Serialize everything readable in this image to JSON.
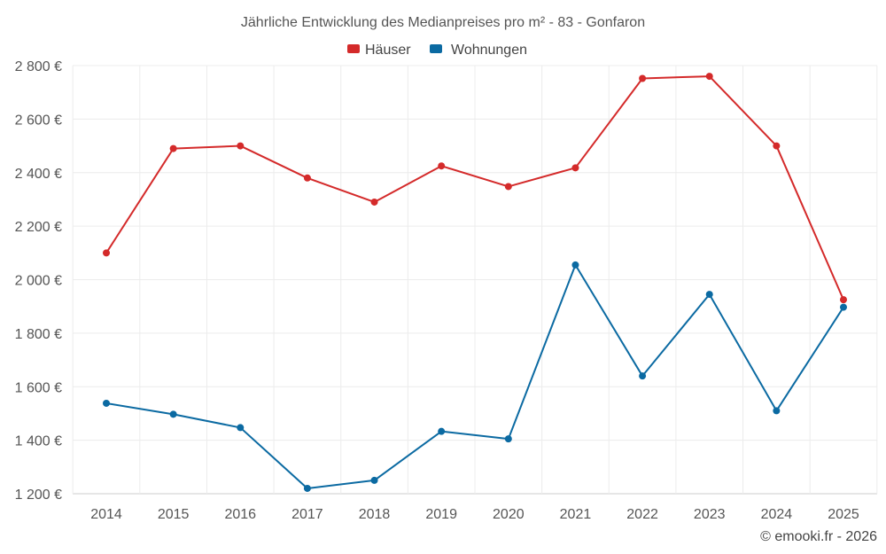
{
  "chart_data": {
    "type": "line",
    "title": "Jährliche Entwicklung des Medianpreises pro m² - 83 - Gonfaron",
    "categories": [
      "2014",
      "2015",
      "2016",
      "2017",
      "2018",
      "2019",
      "2020",
      "2021",
      "2022",
      "2023",
      "2024",
      "2025"
    ],
    "series": [
      {
        "name": "Häuser",
        "color": "#d42a2a",
        "values": [
          2100,
          2490,
          2500,
          2380,
          2290,
          2425,
          2348,
          2418,
          2752,
          2760,
          2500,
          1925
        ]
      },
      {
        "name": "Wohnungen",
        "color": "#0b6aa2",
        "values": [
          1538,
          1497,
          1447,
          1220,
          1250,
          1433,
          1405,
          2055,
          1640,
          1945,
          1510,
          1897
        ]
      }
    ],
    "ylim": [
      1200,
      2800
    ],
    "yticks": [
      1200,
      1400,
      1600,
      1800,
      2000,
      2200,
      2400,
      2600,
      2800
    ],
    "ytick_labels": [
      "1 200 €",
      "1 400 €",
      "1 600 €",
      "1 800 €",
      "2 000 €",
      "2 200 €",
      "2 400 €",
      "2 600 €",
      "2 800 €"
    ],
    "xlabel": "",
    "ylabel": "",
    "grid": true,
    "legend_position": "top-center",
    "credit": "© emooki.fr - 2026"
  }
}
